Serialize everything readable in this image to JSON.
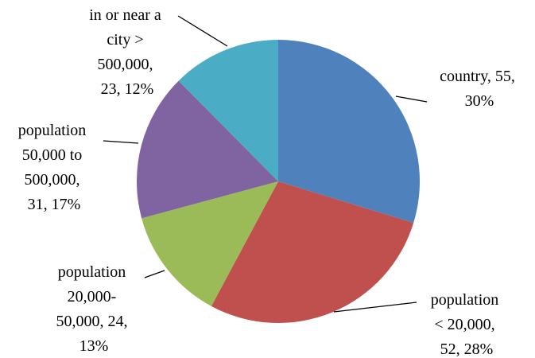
{
  "chart_data": {
    "type": "pie",
    "categories": [
      "country",
      "population < 20,000",
      "population 20,000-50,000",
      "population 50,000 to 500,000",
      "in or near a city > 500,000"
    ],
    "values": [
      55,
      52,
      24,
      31,
      23
    ],
    "value_labels": [
      "country, 55, 30%",
      "population < 20,000, 52, 28%",
      "population 20,000-50,000, 24, 13%",
      "population 50,000 to 500,000, 31, 17%",
      "in or near a city > 500,000, 23, 12%"
    ],
    "colors": [
      "#4f81bd",
      "#c0504d",
      "#9bbb59",
      "#8064a2",
      "#4bacc6"
    ]
  }
}
